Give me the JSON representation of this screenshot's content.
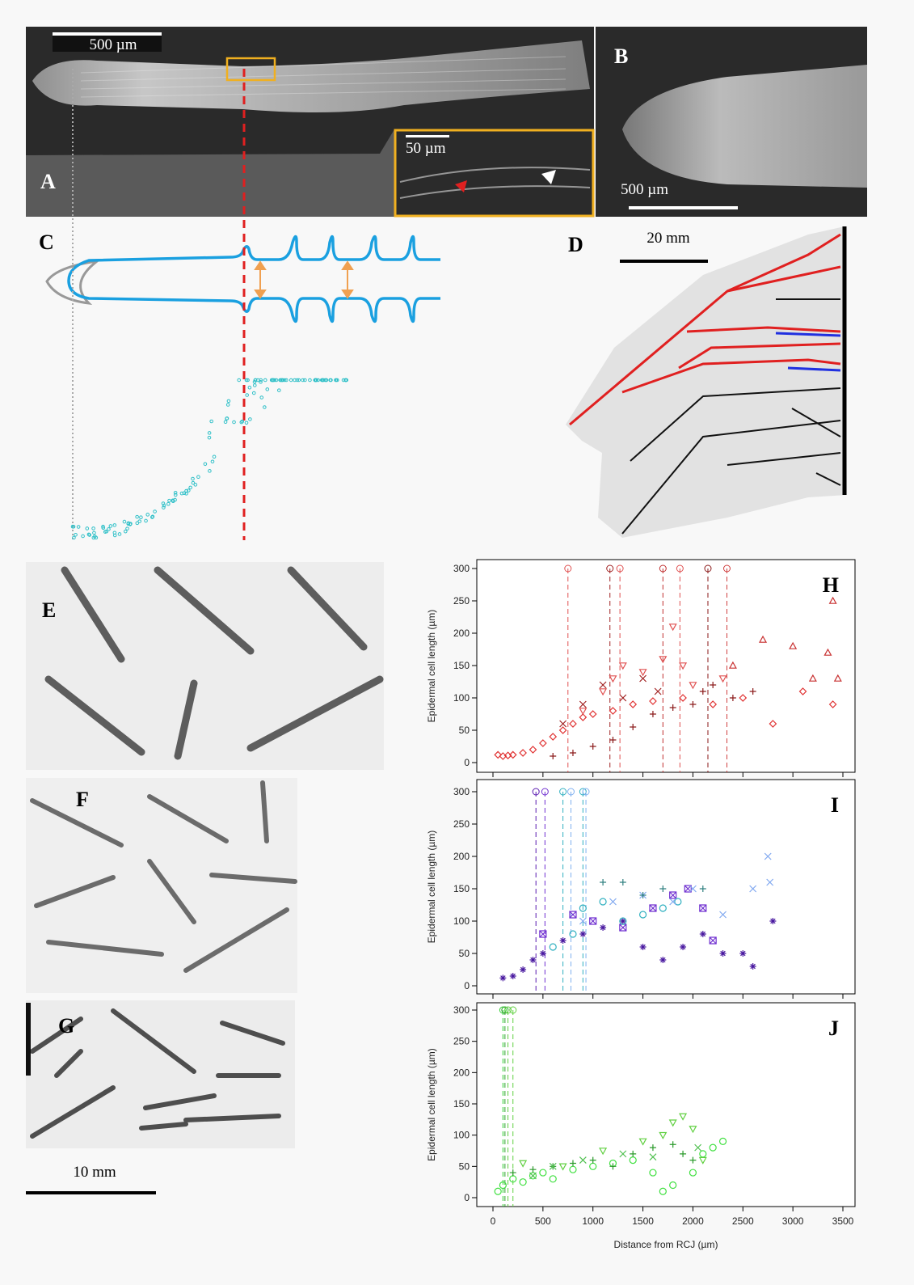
{
  "figure": {
    "panel_a": "A",
    "panel_b": "B",
    "panel_c": "C",
    "panel_d": "D",
    "panel_e": "E",
    "panel_f": "F",
    "panel_g": "G",
    "scale_a": "500 µm",
    "scale_inset": "50 µm",
    "scale_b": "500 µm",
    "scale_d": "20 mm",
    "scale_g": "10 mm"
  },
  "chart_data": [
    {
      "type": "scatter",
      "title": "H",
      "ylabel": "Epidermal cell length (µm)",
      "xlim": [
        0,
        3500
      ],
      "xticks": [
        0,
        500,
        1000,
        1500,
        2000,
        2500,
        3000,
        3500
      ],
      "ylim": [
        0,
        300
      ],
      "yticks": [
        0,
        50,
        100,
        150,
        200,
        250,
        300
      ],
      "vlines": [
        {
          "x": 750,
          "color": "#e05050"
        },
        {
          "x": 1170,
          "color": "#a02020"
        },
        {
          "x": 1270,
          "color": "#e05050"
        },
        {
          "x": 1700,
          "color": "#c03030"
        },
        {
          "x": 1870,
          "color": "#e05050"
        },
        {
          "x": 2150,
          "color": "#8b1a1a"
        },
        {
          "x": 2340,
          "color": "#d04040"
        }
      ],
      "series": [
        {
          "color": "#e03030",
          "marker": "diamond",
          "x": [
            50,
            100,
            150,
            200,
            300,
            400,
            500,
            600,
            700,
            800,
            900,
            1000,
            1200,
            1400,
            1600,
            1900,
            2200,
            2500,
            2800,
            3100,
            3400
          ],
          "values": [
            12,
            10,
            11,
            12,
            15,
            20,
            30,
            40,
            50,
            60,
            70,
            75,
            80,
            90,
            95,
            100,
            90,
            100,
            60,
            110,
            90
          ]
        },
        {
          "color": "#8b1a1a",
          "marker": "plus",
          "x": [
            600,
            800,
            1000,
            1200,
            1400,
            1600,
            1800,
            2000,
            2100,
            2200,
            2400,
            2600
          ],
          "values": [
            10,
            15,
            25,
            35,
            55,
            75,
            85,
            90,
            110,
            120,
            100,
            110
          ]
        },
        {
          "color": "#e05050",
          "marker": "triangle-down",
          "x": [
            900,
            1100,
            1200,
            1300,
            1500,
            1700,
            1800,
            1900,
            2000,
            2300
          ],
          "values": [
            80,
            110,
            130,
            150,
            140,
            160,
            210,
            150,
            120,
            130
          ]
        },
        {
          "color": "#c83030",
          "marker": "triangle",
          "x": [
            2400,
            2700,
            3000,
            3200,
            3350,
            3400,
            3450
          ],
          "values": [
            150,
            190,
            180,
            130,
            170,
            250,
            130
          ]
        },
        {
          "color": "#a02020",
          "marker": "cross",
          "x": [
            700,
            900,
            1100,
            1300,
            1500,
            1650
          ],
          "values": [
            60,
            90,
            120,
            100,
            130,
            110
          ]
        }
      ]
    },
    {
      "type": "scatter",
      "title": "I",
      "ylabel": "Epidermal cell length (µm)",
      "xlim": [
        0,
        3500
      ],
      "xticks": [
        0,
        500,
        1000,
        1500,
        2000,
        2500,
        3000,
        3500
      ],
      "ylim": [
        0,
        300
      ],
      "yticks": [
        0,
        50,
        100,
        150,
        200,
        250,
        300
      ],
      "vlines": [
        {
          "x": 430,
          "color": "#5a1ab0"
        },
        {
          "x": 520,
          "color": "#7030d0"
        },
        {
          "x": 700,
          "color": "#30b0c0"
        },
        {
          "x": 780,
          "color": "#80b0f0"
        },
        {
          "x": 900,
          "color": "#30b0c0"
        },
        {
          "x": 930,
          "color": "#80b0f0"
        }
      ],
      "series": [
        {
          "color": "#4a1aa0",
          "marker": "asterisk",
          "x": [
            100,
            200,
            300,
            400,
            500,
            700,
            900,
            1100,
            1300,
            1500,
            1700,
            1900,
            2100,
            2300,
            2500,
            2600,
            2800
          ],
          "values": [
            12,
            15,
            25,
            40,
            50,
            70,
            80,
            90,
            100,
            60,
            40,
            60,
            80,
            50,
            50,
            30,
            100
          ]
        },
        {
          "color": "#7030d0",
          "marker": "square-x",
          "x": [
            500,
            800,
            1000,
            1300,
            1600,
            1800,
            1950,
            2100,
            2200
          ],
          "values": [
            80,
            110,
            100,
            90,
            120,
            140,
            150,
            120,
            70
          ]
        },
        {
          "color": "#30b0c0",
          "marker": "circle",
          "x": [
            600,
            800,
            900,
            1100,
            1300,
            1500,
            1700,
            1850
          ],
          "values": [
            60,
            80,
            120,
            130,
            100,
            110,
            120,
            130
          ]
        },
        {
          "color": "#80a8f0",
          "marker": "cross",
          "x": [
            900,
            1200,
            1500,
            1800,
            2000,
            2300,
            2600,
            2750,
            2770
          ],
          "values": [
            100,
            130,
            140,
            130,
            150,
            110,
            150,
            200,
            160
          ]
        },
        {
          "color": "#308080",
          "marker": "plus",
          "x": [
            1100,
            1300,
            1500,
            1700,
            2100
          ],
          "values": [
            160,
            160,
            140,
            150,
            150
          ]
        }
      ]
    },
    {
      "type": "scatter",
      "title": "J",
      "ylabel": "Epidermal cell length (µm)",
      "xlabel": "Distance from RCJ (µm)",
      "xlim": [
        0,
        3500
      ],
      "xticks": [
        0,
        500,
        1000,
        1500,
        2000,
        2500,
        3000,
        3500
      ],
      "ylim": [
        0,
        300
      ],
      "yticks": [
        0,
        50,
        100,
        150,
        200,
        250,
        300
      ],
      "vlines": [
        {
          "x": 100,
          "color": "#30d030"
        },
        {
          "x": 120,
          "color": "#2a9a2a"
        },
        {
          "x": 150,
          "color": "#60d040"
        },
        {
          "x": 200,
          "color": "#60d040"
        }
      ],
      "series": [
        {
          "color": "#40e040",
          "marker": "circle",
          "x": [
            50,
            100,
            200,
            300,
            400,
            500,
            600,
            800,
            1000,
            1200,
            1400,
            1600,
            1700,
            1800,
            2000,
            2100,
            2200,
            2300
          ],
          "values": [
            10,
            20,
            30,
            25,
            35,
            40,
            30,
            45,
            50,
            55,
            60,
            40,
            10,
            20,
            40,
            70,
            80,
            90
          ]
        },
        {
          "color": "#2a9a2a",
          "marker": "plus",
          "x": [
            200,
            400,
            600,
            800,
            1000,
            1200,
            1400,
            1600,
            1800,
            1900,
            2000
          ],
          "values": [
            40,
            45,
            50,
            55,
            60,
            50,
            70,
            80,
            85,
            70,
            60
          ]
        },
        {
          "color": "#60d040",
          "marker": "triangle-down",
          "x": [
            300,
            700,
            1100,
            1500,
            1700,
            1800,
            1900,
            2000,
            2100
          ],
          "values": [
            55,
            50,
            75,
            90,
            100,
            120,
            130,
            110,
            60
          ]
        },
        {
          "color": "#50c050",
          "marker": "cross",
          "x": [
            400,
            600,
            900,
            1300,
            1600,
            2050
          ],
          "values": [
            35,
            50,
            60,
            70,
            65,
            80
          ]
        }
      ]
    }
  ]
}
